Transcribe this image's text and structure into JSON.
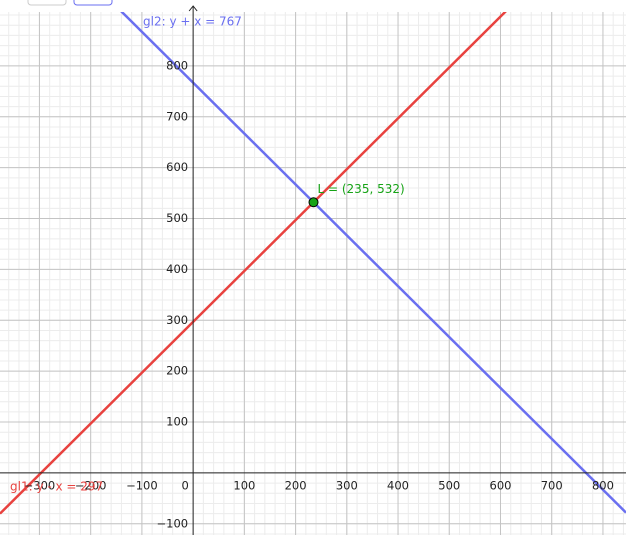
{
  "chart_data": {
    "type": "function-plot",
    "xlim": [
      -377,
      845
    ],
    "ylim": [
      -122,
      906
    ],
    "xticks": [
      {
        "value": -300,
        "label": "−300"
      },
      {
        "value": -200,
        "label": "−200"
      },
      {
        "value": -100,
        "label": "−100"
      },
      0,
      100,
      200,
      300,
      400,
      500,
      600,
      700,
      800
    ],
    "yticks": [
      {
        "value": -100,
        "label": "−100"
      },
      100,
      200,
      300,
      400,
      500,
      600,
      700,
      800
    ],
    "grid": true,
    "series": [
      {
        "name": "gl1: y - x = 297",
        "color": "#e8423f",
        "equation": {
          "y": 1,
          "x": -1,
          "c": 297
        }
      },
      {
        "name": "gl2: y + x = 767",
        "color": "#6a6ff0",
        "equation": {
          "y": 1,
          "x": 1,
          "c": 767
        }
      }
    ],
    "points": [
      {
        "label": "L = (235, 532)",
        "x": 235,
        "y": 532,
        "color": "#16a316"
      }
    ]
  }
}
